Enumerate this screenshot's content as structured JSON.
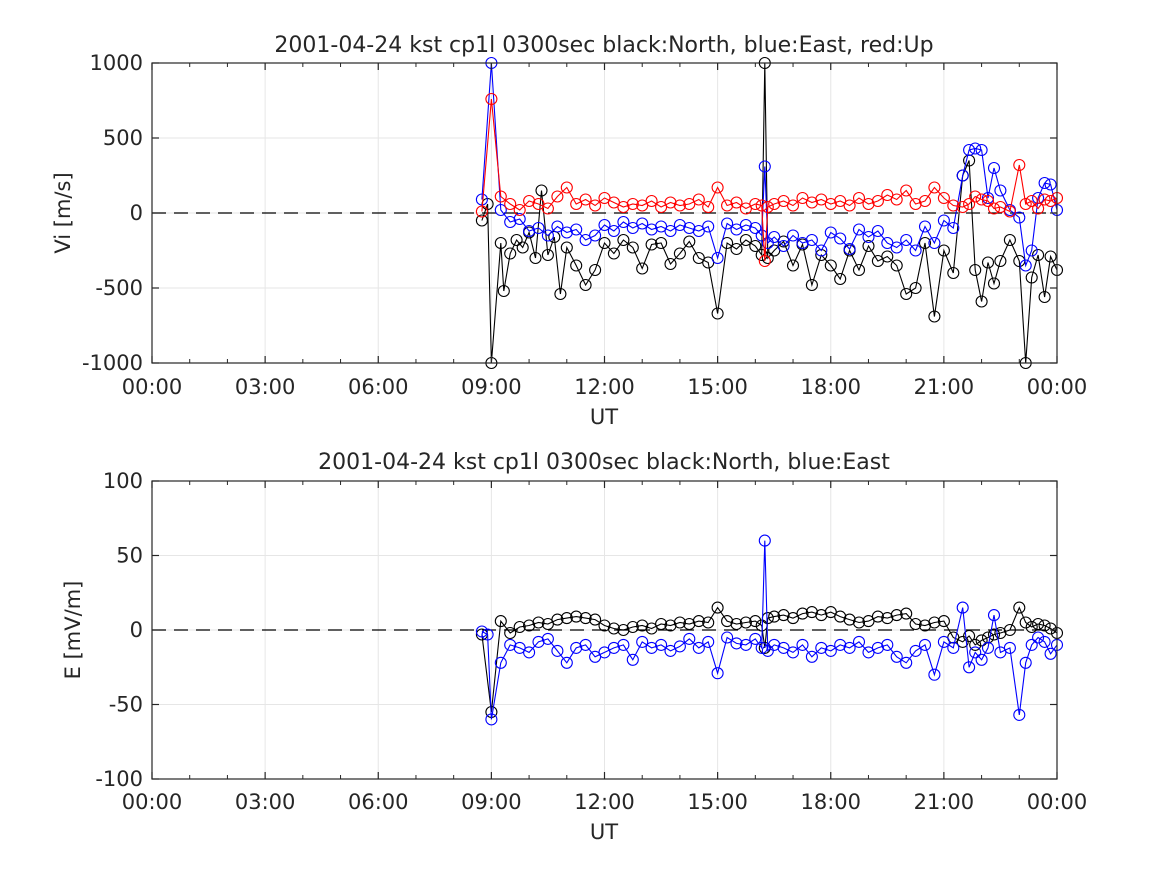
{
  "chart_data": [
    {
      "type": "line",
      "title": "2001-04-24 kst cp1l 0300sec black:North, blue:East, red:Up",
      "xlabel": "UT",
      "ylabel": "Vi [m/s]",
      "x_unit": "hours UT",
      "xlim": [
        0,
        24
      ],
      "ylim": [
        -1000,
        1000
      ],
      "xticks": [
        0,
        3,
        6,
        9,
        12,
        15,
        18,
        21,
        24
      ],
      "xtick_labels": [
        "00:00",
        "03:00",
        "06:00",
        "09:00",
        "12:00",
        "15:00",
        "18:00",
        "21:00",
        "00:00"
      ],
      "yticks": [
        -1000,
        -500,
        0,
        500,
        1000
      ],
      "ytick_labels": [
        "-1000",
        "-500",
        "0",
        "500",
        "1000"
      ],
      "grid": true,
      "reference_line": {
        "y": 0,
        "style": "dashed",
        "color": "#000000"
      },
      "series": [
        {
          "name": "North",
          "color": "#000000",
          "x": [
            8.75,
            8.9,
            9.0,
            9.25,
            9.33,
            9.5,
            9.67,
            9.83,
            10.0,
            10.17,
            10.33,
            10.5,
            10.67,
            10.83,
            11.0,
            11.25,
            11.5,
            11.75,
            12.0,
            12.25,
            12.5,
            12.75,
            13.0,
            13.25,
            13.5,
            13.75,
            14.0,
            14.25,
            14.5,
            14.75,
            15.0,
            15.25,
            15.5,
            15.75,
            16.0,
            16.17,
            16.25,
            16.33,
            16.5,
            16.75,
            17.0,
            17.25,
            17.5,
            17.75,
            18.0,
            18.25,
            18.5,
            18.75,
            19.0,
            19.25,
            19.5,
            19.75,
            20.0,
            20.25,
            20.5,
            20.75,
            21.0,
            21.25,
            21.5,
            21.67,
            21.83,
            22.0,
            22.17,
            22.33,
            22.5,
            22.75,
            23.0,
            23.17,
            23.33,
            23.5,
            23.67,
            23.83,
            24.0
          ],
          "y": [
            -50,
            60,
            -1000,
            -200,
            -520,
            -270,
            -180,
            -230,
            -130,
            -300,
            150,
            -280,
            -160,
            -540,
            -230,
            -350,
            -480,
            -380,
            -200,
            -270,
            -180,
            -230,
            -370,
            -210,
            -200,
            -340,
            -270,
            -190,
            -300,
            -330,
            -670,
            -200,
            -240,
            -180,
            -220,
            -280,
            1000,
            -300,
            -250,
            -190,
            -350,
            -210,
            -480,
            -280,
            -350,
            -440,
            -250,
            -380,
            -220,
            -320,
            -290,
            -350,
            -540,
            -500,
            -200,
            -690,
            -250,
            -400,
            250,
            350,
            -380,
            -590,
            -330,
            -470,
            -320,
            -180,
            -320,
            -1000,
            -430,
            -280,
            -560,
            -290,
            -380
          ]
        },
        {
          "name": "East",
          "color": "#0000ff",
          "x": [
            8.75,
            9.0,
            9.25,
            9.5,
            9.75,
            10.0,
            10.25,
            10.5,
            10.75,
            11.0,
            11.25,
            11.5,
            11.75,
            12.0,
            12.25,
            12.5,
            12.75,
            13.0,
            13.25,
            13.5,
            13.75,
            14.0,
            14.25,
            14.5,
            14.75,
            15.0,
            15.25,
            15.5,
            15.75,
            16.0,
            16.17,
            16.25,
            16.33,
            16.5,
            16.75,
            17.0,
            17.25,
            17.5,
            17.75,
            18.0,
            18.25,
            18.5,
            18.75,
            19.0,
            19.25,
            19.5,
            19.75,
            20.0,
            20.25,
            20.5,
            20.75,
            21.0,
            21.25,
            21.5,
            21.67,
            21.83,
            22.0,
            22.17,
            22.33,
            22.5,
            22.75,
            23.0,
            23.17,
            23.33,
            23.5,
            23.67,
            23.83,
            24.0
          ],
          "y": [
            90,
            1000,
            20,
            -60,
            -40,
            -120,
            -100,
            -150,
            -90,
            -130,
            -110,
            -180,
            -150,
            -80,
            -120,
            -60,
            -100,
            -70,
            -110,
            -90,
            -120,
            -80,
            -100,
            -120,
            -90,
            -300,
            -70,
            -110,
            -80,
            -100,
            -150,
            310,
            -200,
            -160,
            -220,
            -150,
            -200,
            -180,
            -250,
            -130,
            -170,
            -240,
            -110,
            -160,
            -120,
            -200,
            -230,
            -180,
            -250,
            -90,
            -200,
            -50,
            -100,
            250,
            420,
            430,
            420,
            100,
            300,
            150,
            20,
            -30,
            -350,
            -250,
            100,
            200,
            190,
            20
          ]
        },
        {
          "name": "Up",
          "color": "#ff0000",
          "x": [
            8.75,
            9.0,
            9.25,
            9.5,
            9.75,
            10.0,
            10.25,
            10.5,
            10.75,
            11.0,
            11.25,
            11.5,
            11.75,
            12.0,
            12.25,
            12.5,
            12.75,
            13.0,
            13.25,
            13.5,
            13.75,
            14.0,
            14.25,
            14.5,
            14.75,
            15.0,
            15.25,
            15.5,
            15.75,
            16.0,
            16.17,
            16.25,
            16.33,
            16.5,
            16.75,
            17.0,
            17.25,
            17.5,
            17.75,
            18.0,
            18.25,
            18.5,
            18.75,
            19.0,
            19.25,
            19.5,
            19.75,
            20.0,
            20.25,
            20.5,
            20.75,
            21.0,
            21.25,
            21.5,
            21.67,
            21.83,
            22.0,
            22.17,
            22.33,
            22.5,
            22.75,
            23.0,
            23.17,
            23.33,
            23.5,
            23.67,
            23.83,
            24.0
          ],
          "y": [
            10,
            760,
            110,
            60,
            20,
            80,
            60,
            30,
            110,
            170,
            60,
            90,
            50,
            100,
            70,
            40,
            60,
            50,
            80,
            40,
            70,
            50,
            60,
            90,
            40,
            170,
            50,
            70,
            30,
            60,
            50,
            -320,
            40,
            60,
            80,
            50,
            100,
            70,
            90,
            60,
            80,
            50,
            100,
            60,
            80,
            120,
            90,
            150,
            60,
            80,
            170,
            100,
            50,
            40,
            60,
            110,
            90,
            80,
            30,
            40,
            10,
            320,
            60,
            80,
            30,
            90,
            80,
            100
          ]
        }
      ]
    },
    {
      "type": "line",
      "title": "2001-04-24 kst cp1l 0300sec black:North, blue:East",
      "xlabel": "UT",
      "ylabel": "E [mV/m]",
      "x_unit": "hours UT",
      "xlim": [
        0,
        24
      ],
      "ylim": [
        -100,
        100
      ],
      "xticks": [
        0,
        3,
        6,
        9,
        12,
        15,
        18,
        21,
        24
      ],
      "xtick_labels": [
        "00:00",
        "03:00",
        "06:00",
        "09:00",
        "12:00",
        "15:00",
        "18:00",
        "21:00",
        "00:00"
      ],
      "yticks": [
        -100,
        -50,
        0,
        50,
        100
      ],
      "ytick_labels": [
        "-100",
        "-50",
        "0",
        "50",
        "100"
      ],
      "grid": true,
      "reference_line": {
        "y": 0,
        "style": "dashed",
        "color": "#000000"
      },
      "series": [
        {
          "name": "North",
          "color": "#000000",
          "x": [
            8.75,
            9.0,
            9.25,
            9.5,
            9.75,
            10.0,
            10.25,
            10.5,
            10.75,
            11.0,
            11.25,
            11.5,
            11.75,
            12.0,
            12.25,
            12.5,
            12.75,
            13.0,
            13.25,
            13.5,
            13.75,
            14.0,
            14.25,
            14.5,
            14.75,
            15.0,
            15.25,
            15.5,
            15.75,
            16.0,
            16.17,
            16.25,
            16.33,
            16.5,
            16.75,
            17.0,
            17.25,
            17.5,
            17.75,
            18.0,
            18.25,
            18.5,
            18.75,
            19.0,
            19.25,
            19.5,
            19.75,
            20.0,
            20.25,
            20.5,
            20.75,
            21.0,
            21.25,
            21.5,
            21.67,
            21.83,
            22.0,
            22.17,
            22.33,
            22.5,
            22.75,
            23.0,
            23.17,
            23.33,
            23.5,
            23.67,
            23.83,
            24.0
          ],
          "y": [
            -3,
            -55,
            6,
            -2,
            2,
            3,
            5,
            4,
            7,
            8,
            9,
            8,
            7,
            3,
            1,
            0,
            2,
            3,
            1,
            4,
            3,
            5,
            4,
            6,
            5,
            15,
            6,
            4,
            5,
            6,
            3,
            -12,
            8,
            9,
            10,
            8,
            11,
            12,
            10,
            12,
            9,
            7,
            5,
            6,
            9,
            8,
            10,
            11,
            4,
            3,
            5,
            6,
            -5,
            -8,
            -4,
            -10,
            -7,
            -5,
            -3,
            -2,
            0,
            15,
            5,
            2,
            4,
            3,
            1,
            -2
          ]
        },
        {
          "name": "East",
          "color": "#0000ff",
          "x": [
            8.75,
            8.9,
            9.0,
            9.25,
            9.5,
            9.75,
            10.0,
            10.25,
            10.5,
            10.75,
            11.0,
            11.25,
            11.5,
            11.75,
            12.0,
            12.25,
            12.5,
            12.75,
            13.0,
            13.25,
            13.5,
            13.75,
            14.0,
            14.25,
            14.5,
            14.75,
            15.0,
            15.25,
            15.5,
            15.75,
            16.0,
            16.17,
            16.25,
            16.33,
            16.5,
            16.75,
            17.0,
            17.25,
            17.5,
            17.75,
            18.0,
            18.25,
            18.5,
            18.75,
            19.0,
            19.25,
            19.5,
            19.75,
            20.0,
            20.25,
            20.5,
            20.75,
            21.0,
            21.25,
            21.5,
            21.67,
            21.83,
            22.0,
            22.17,
            22.33,
            22.5,
            22.75,
            23.0,
            23.17,
            23.33,
            23.5,
            23.67,
            23.83,
            24.0
          ],
          "y": [
            -1,
            -3,
            -60,
            -22,
            -10,
            -12,
            -15,
            -8,
            -6,
            -14,
            -22,
            -12,
            -10,
            -18,
            -15,
            -12,
            -10,
            -20,
            -8,
            -12,
            -10,
            -14,
            -11,
            -6,
            -12,
            -8,
            -29,
            -5,
            -9,
            -10,
            -6,
            -12,
            60,
            -14,
            -10,
            -12,
            -15,
            -10,
            -18,
            -12,
            -14,
            -10,
            -12,
            -8,
            -15,
            -12,
            -10,
            -18,
            -22,
            -14,
            -10,
            -30,
            -8,
            -12,
            15,
            -25,
            -15,
            -20,
            -12,
            10,
            -15,
            -12,
            -57,
            -22,
            -10,
            -5,
            -8,
            -16,
            -10
          ]
        }
      ]
    }
  ]
}
